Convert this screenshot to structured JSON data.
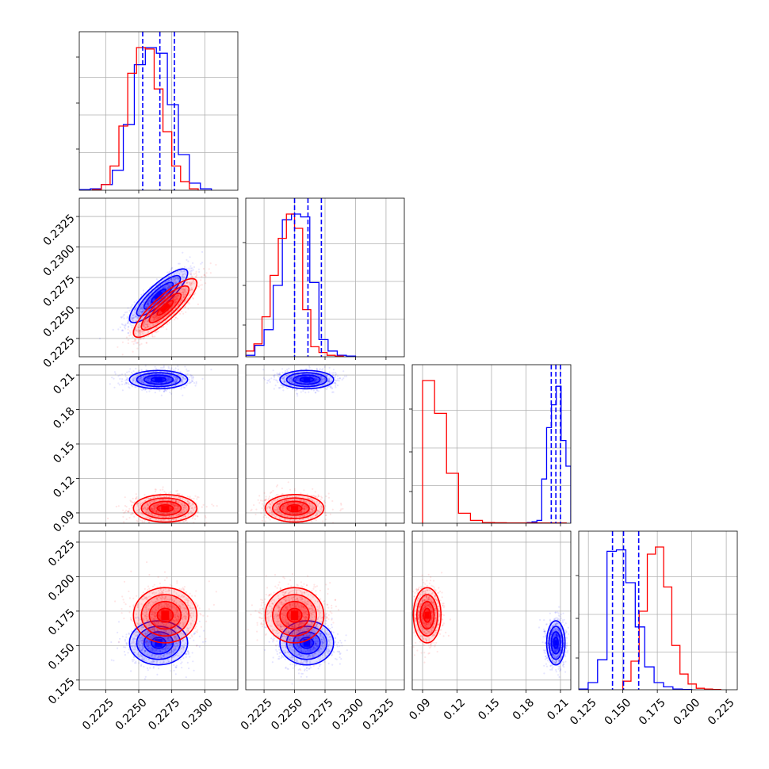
{
  "chart_data": {
    "type": "corner",
    "title": "",
    "grid": true,
    "colors": {
      "red": "#ff0000",
      "blue": "#0000ff"
    },
    "params": [
      {
        "index": 0,
        "range": [
          0.2205,
          0.2325
        ],
        "ticks": [
          {
            "v": 0.2225,
            "label": "0.2225"
          },
          {
            "v": 0.225,
            "label": "0.2250"
          },
          {
            "v": 0.2275,
            "label": "0.2275"
          },
          {
            "v": 0.23,
            "label": "0.2300"
          }
        ]
      },
      {
        "index": 1,
        "range": [
          0.221,
          0.234
        ],
        "ticks": [
          {
            "v": 0.2225,
            "label": "0.2225"
          },
          {
            "v": 0.225,
            "label": "0.2250"
          },
          {
            "v": 0.2275,
            "label": "0.2275"
          },
          {
            "v": 0.23,
            "label": "0.2300"
          },
          {
            "v": 0.2325,
            "label": "0.2325"
          }
        ]
      },
      {
        "index": 2,
        "range": [
          0.081,
          0.219
        ],
        "ticks": [
          {
            "v": 0.09,
            "label": "0.09"
          },
          {
            "v": 0.12,
            "label": "0.12"
          },
          {
            "v": 0.15,
            "label": "0.15"
          },
          {
            "v": 0.18,
            "label": "0.18"
          },
          {
            "v": 0.21,
            "label": "0.21"
          }
        ]
      },
      {
        "index": 3,
        "range": [
          0.118,
          0.233
        ],
        "ticks": [
          {
            "v": 0.125,
            "label": "0.125"
          },
          {
            "v": 0.15,
            "label": "0.150"
          },
          {
            "v": 0.175,
            "label": "0.175"
          },
          {
            "v": 0.2,
            "label": "0.200"
          },
          {
            "v": 0.225,
            "label": "0.225"
          }
        ]
      }
    ],
    "series": [
      {
        "color": "red",
        "mean": [
          0.227,
          0.225,
          0.094,
          0.172
        ],
        "sd": [
          0.0012,
          0.0012,
          0.006,
          0.01
        ],
        "corr": [
          [
            1,
            0.85,
            0,
            0
          ],
          [
            0.85,
            1,
            0,
            0
          ],
          [
            0,
            0,
            1,
            0
          ],
          [
            0,
            0,
            0,
            1
          ]
        ],
        "hist": [
          {
            "edges": [
              0.2215,
              0.2295
            ],
            "counts": [
              0.005,
              0.04,
              0.17,
              0.45,
              0.82,
              1.0,
              0.99,
              0.71,
              0.41,
              0.17,
              0.06,
              0.01
            ]
          },
          {
            "edges": [
              0.221,
              0.229
            ],
            "counts": [
              0.04,
              0.09,
              0.28,
              0.57,
              0.83,
              1.0,
              0.9,
              0.33,
              0.07,
              0.03,
              0.01,
              0.005
            ]
          },
          {
            "edges": [
              0.09,
              0.215
            ],
            "counts": [
              1.0,
              0.77,
              0.35,
              0.07,
              0.02,
              0.005,
              0.003,
              0.002,
              0.002,
              0.002,
              0.002,
              0.002
            ]
          },
          {
            "edges": [
              0.15,
              0.221
            ],
            "counts": [
              0.06,
              0.2,
              0.55,
              0.95,
              1.0,
              0.72,
              0.31,
              0.11,
              0.04,
              0.01,
              0.005,
              0.002
            ]
          }
        ]
      },
      {
        "color": "blue",
        "mean": [
          0.2265,
          0.226,
          0.206,
          0.152
        ],
        "sd": [
          0.0011,
          0.0011,
          0.004,
          0.008
        ],
        "corr": [
          [
            1,
            0.85,
            0,
            0
          ],
          [
            0.85,
            1,
            0,
            0
          ],
          [
            0,
            0,
            1,
            0
          ],
          [
            0,
            0,
            0,
            1
          ]
        ],
        "quantiles": [
          [
            0.2253,
            0.2266,
            0.2277
          ],
          [
            0.225,
            0.2261,
            0.2272
          ],
          [
            0.202,
            0.206,
            0.21
          ],
          [
            0.1425,
            0.1505,
            0.1615
          ]
        ],
        "hist": [
          {
            "edges": [
              0.2205,
              0.2305
            ],
            "counts": [
              0.005,
              0.01,
              0.04,
              0.14,
              0.46,
              0.88,
              1.0,
              0.96,
              0.6,
              0.25,
              0.05,
              0.01
            ]
          },
          {
            "edges": [
              0.221,
              0.23
            ],
            "counts": [
              0.01,
              0.08,
              0.19,
              0.5,
              0.96,
              1.0,
              0.98,
              0.52,
              0.12,
              0.04,
              0.01,
              0.005
            ]
          },
          {
            "edges": [
              0.16,
              0.219
            ],
            "counts": [
              0.002,
              0.002,
              0.002,
              0.002,
              0.002,
              0.005,
              0.01,
              0.02,
              0.31,
              0.67,
              0.83,
              0.96,
              0.58,
              0.4
            ]
          },
          {
            "edges": [
              0.118,
              0.2
            ],
            "counts": [
              0.005,
              0.05,
              0.21,
              0.97,
              0.98,
              0.75,
              0.44,
              0.16,
              0.05,
              0.02,
              0.005,
              0.002
            ]
          }
        ]
      }
    ]
  }
}
